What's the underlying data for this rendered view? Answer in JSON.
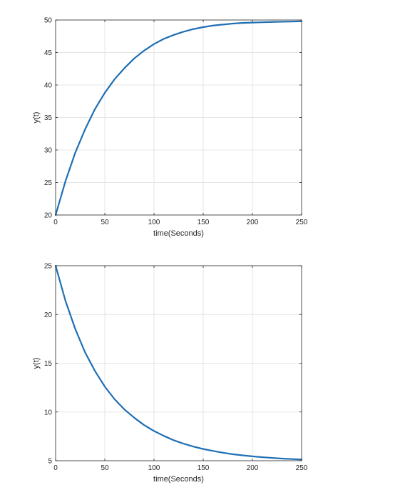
{
  "chart_data": [
    {
      "type": "line",
      "xlabel": "time(Seconds)",
      "ylabel": "y(t)",
      "xlim": [
        0,
        250
      ],
      "ylim": [
        20,
        50
      ],
      "xticks": [
        0,
        50,
        100,
        150,
        200,
        250
      ],
      "yticks": [
        20,
        25,
        30,
        35,
        40,
        45,
        50
      ],
      "grid": true,
      "color": "#1f6fb4",
      "series": [
        {
          "x": [
            0,
            10,
            20,
            30,
            40,
            50,
            60,
            70,
            80,
            90,
            100,
            110,
            120,
            130,
            140,
            150,
            160,
            170,
            180,
            190,
            200,
            210,
            220,
            230,
            240,
            250
          ],
          "y": [
            20.0,
            25.2,
            29.6,
            33.2,
            36.3,
            38.8,
            40.9,
            42.6,
            44.1,
            45.3,
            46.3,
            47.1,
            47.7,
            48.2,
            48.6,
            48.9,
            49.15,
            49.3,
            49.45,
            49.55,
            49.6,
            49.65,
            49.7,
            49.73,
            49.76,
            49.8
          ]
        }
      ]
    },
    {
      "type": "line",
      "xlabel": "time(Seconds)",
      "ylabel": "y(t)",
      "xlim": [
        0,
        250
      ],
      "ylim": [
        5,
        25
      ],
      "xticks": [
        0,
        50,
        100,
        150,
        200,
        250
      ],
      "yticks": [
        5,
        10,
        15,
        20,
        25
      ],
      "grid": true,
      "color": "#1f6fb4",
      "series": [
        {
          "x": [
            0,
            10,
            20,
            30,
            40,
            50,
            60,
            70,
            80,
            90,
            100,
            110,
            120,
            130,
            140,
            150,
            160,
            170,
            180,
            190,
            200,
            210,
            220,
            230,
            240,
            250
          ],
          "y": [
            25.0,
            21.4,
            18.5,
            16.1,
            14.2,
            12.6,
            11.3,
            10.25,
            9.4,
            8.65,
            8.05,
            7.55,
            7.1,
            6.75,
            6.45,
            6.2,
            6.0,
            5.82,
            5.67,
            5.55,
            5.45,
            5.36,
            5.29,
            5.22,
            5.17,
            5.13
          ]
        }
      ]
    }
  ]
}
